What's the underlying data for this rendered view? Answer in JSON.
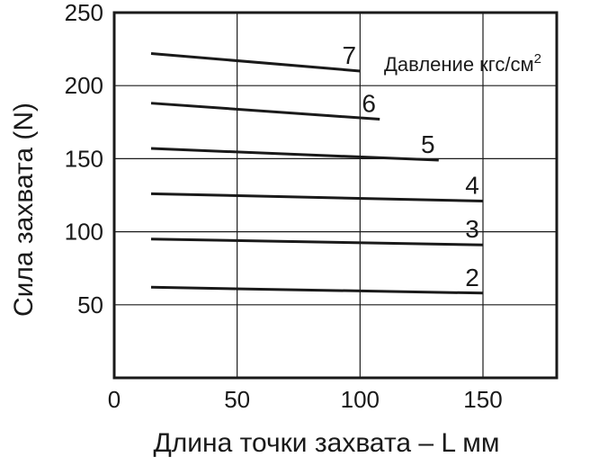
{
  "chart_data": {
    "type": "line",
    "title": "",
    "xlabel": "Длина точки захвата – L мм",
    "ylabel": "Сила захвата (N)",
    "xlim": [
      0,
      180
    ],
    "ylim": [
      0,
      250
    ],
    "x_ticks": [
      0,
      50,
      100,
      150
    ],
    "y_ticks": [
      50,
      100,
      150,
      200,
      250
    ],
    "grid": true,
    "legend_note": {
      "text": "Давление кгс/см",
      "superscript": "2",
      "placement": "top-right"
    },
    "series": [
      {
        "name": "2",
        "x": [
          15,
          150
        ],
        "y": [
          62,
          58
        ]
      },
      {
        "name": "3",
        "x": [
          15,
          150
        ],
        "y": [
          95,
          91
        ]
      },
      {
        "name": "4",
        "x": [
          15,
          150
        ],
        "y": [
          126,
          121
        ]
      },
      {
        "name": "5",
        "x": [
          15,
          132
        ],
        "y": [
          157,
          149
        ]
      },
      {
        "name": "6",
        "x": [
          15,
          108
        ],
        "y": [
          188,
          177
        ]
      },
      {
        "name": "7",
        "x": [
          15,
          100
        ],
        "y": [
          222,
          210
        ]
      }
    ],
    "line_color": "#1a1a1a",
    "grid_color": "#1a1a1a"
  }
}
